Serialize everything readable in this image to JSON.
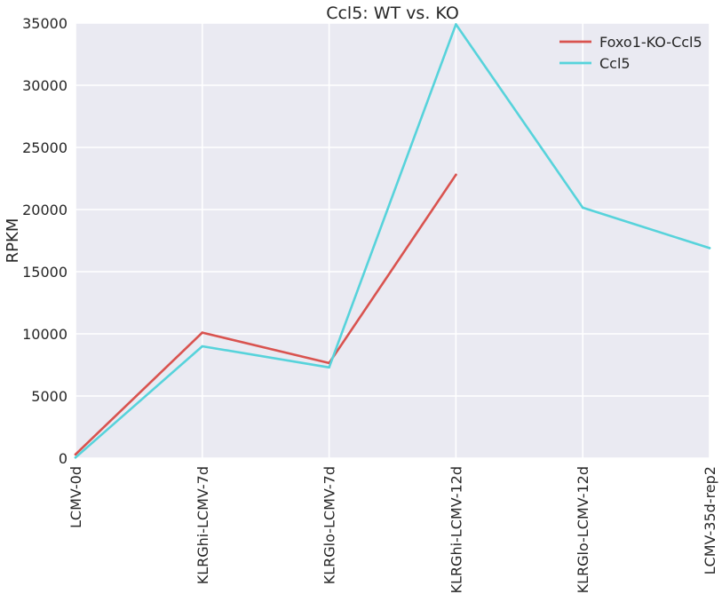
{
  "chart_data": {
    "type": "line",
    "title": "Ccl5: WT vs. KO",
    "xlabel": "",
    "ylabel": "RPKM",
    "categories": [
      "LCMV-0d",
      "KLRGhi-LCMV-7d",
      "KLRGlo-LCMV-7d",
      "KLRGhi-LCMV-12d",
      "KLRGlo-LCMV-12d",
      "LCMV-35d-rep2"
    ],
    "ylim": [
      0,
      35000
    ],
    "yticks": [
      0,
      5000,
      10000,
      15000,
      20000,
      25000,
      30000,
      35000
    ],
    "ytick_labels": [
      "0",
      "5000",
      "10000",
      "15000",
      "20000",
      "25000",
      "30000",
      "35000"
    ],
    "grid": true,
    "legend_position": "top-right",
    "series": [
      {
        "name": "Foxo1-KO-Ccl5",
        "color": "#d9534f",
        "values": [
          300,
          10100,
          7650,
          22800,
          null,
          null
        ]
      },
      {
        "name": "Ccl5",
        "color": "#57d3db",
        "values": [
          50,
          9000,
          7300,
          34900,
          20150,
          16900
        ]
      }
    ]
  }
}
